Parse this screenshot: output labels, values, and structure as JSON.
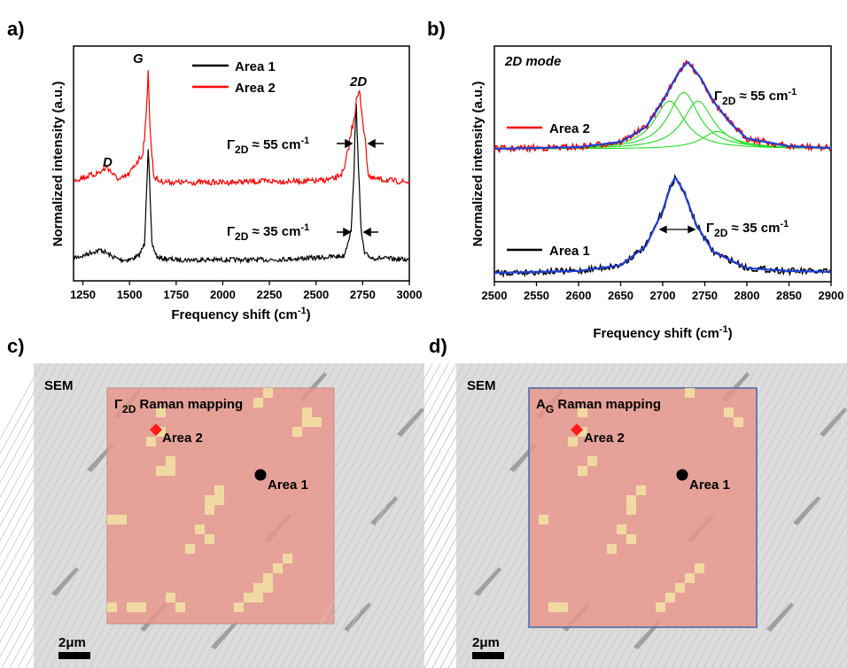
{
  "colors": {
    "area1": "#000000",
    "area2": "#ff0000",
    "fit": "#1f3fd6",
    "components": "#22dd22",
    "map_fill": "#e8958a",
    "map_highlight": "#f4e9a3",
    "sem_bg": "#dcdcdc",
    "map_border_d": "#4b6fa8"
  },
  "panels": {
    "a": {
      "letter": "a)",
      "xlabel": "Frequency shift (cm",
      "xlabel_sup": "-1",
      "xlabel_end": ")",
      "ylabel": "Normalized intensity (a.u.)",
      "xticks": [
        "1250",
        "1500",
        "1750",
        "2000",
        "2250",
        "2500",
        "2750",
        "3000"
      ],
      "peak_D": "D",
      "peak_G": "G",
      "peak_2D": "2D",
      "gamma_top": "Γ",
      "gamma_top_sub": "2D",
      "gamma_top_val": " ≈ 55 cm",
      "gamma_top_sup": "-1",
      "gamma_bot": "Γ",
      "gamma_bot_sub": "2D",
      "gamma_bot_val": " ≈ 35 cm",
      "gamma_bot_sup": "-1",
      "legend": [
        "Area 1",
        "Area 2"
      ]
    },
    "b": {
      "letter": "b)",
      "xlabel": "Frequency shift (cm",
      "xlabel_sup": "-1",
      "xlabel_end": ")",
      "ylabel": "Normalized intensity (a.u.)",
      "xticks": [
        "2500",
        "2550",
        "2600",
        "2650",
        "2700",
        "2750",
        "2800",
        "2850",
        "2900"
      ],
      "mode_label": "2D mode",
      "gamma_top": "Γ",
      "gamma_top_sub": "2D",
      "gamma_top_val": " ≈ 55 cm",
      "gamma_top_sup": "-1",
      "gamma_bot": "Γ",
      "gamma_bot_sub": "2D",
      "gamma_bot_val": " ≈ 35 cm",
      "gamma_bot_sup": "-1",
      "legend_top": "Area 2",
      "legend_bot": "Area 1"
    },
    "c": {
      "letter": "c)",
      "sem": "SEM",
      "map_title_symbol": "Γ",
      "map_title_sub": "2D",
      "map_title_rest": " Raman mapping",
      "area2": "Area 2",
      "area1": "Area 1",
      "scale": "2μm"
    },
    "d": {
      "letter": "d)",
      "sem": "SEM",
      "map_title_symbol": "A",
      "map_title_sub": "G",
      "map_title_rest": " Raman mapping",
      "area2": "Area 2",
      "area1": "Area 1",
      "scale": "2μm"
    }
  },
  "chart_data": [
    {
      "type": "line",
      "panel": "a",
      "xlabel": "Frequency shift (cm-1)",
      "ylabel": "Normalized intensity (a.u.)",
      "xlim": [
        1200,
        3000
      ],
      "series": [
        {
          "name": "Area 1",
          "x": [
            1200,
            1250,
            1300,
            1350,
            1400,
            1450,
            1500,
            1550,
            1580,
            1600,
            1620,
            1650,
            1750,
            2000,
            2250,
            2500,
            2650,
            2690,
            2705,
            2715,
            2725,
            2740,
            2760,
            2800,
            3000
          ],
          "y": [
            0.05,
            0.06,
            0.08,
            0.09,
            0.06,
            0.04,
            0.04,
            0.06,
            0.12,
            0.62,
            0.12,
            0.05,
            0.04,
            0.04,
            0.04,
            0.05,
            0.06,
            0.2,
            0.55,
            0.85,
            0.6,
            0.2,
            0.07,
            0.05,
            0.04
          ]
        },
        {
          "name": "Area 2",
          "x": [
            1200,
            1250,
            1300,
            1350,
            1380,
            1420,
            1450,
            1500,
            1540,
            1570,
            1590,
            1600,
            1610,
            1630,
            1660,
            1750,
            2000,
            2250,
            2500,
            2600,
            2650,
            2690,
            2720,
            2735,
            2760,
            2780,
            2800,
            3000
          ],
          "y": [
            0.05,
            0.07,
            0.09,
            0.12,
            0.16,
            0.08,
            0.05,
            0.1,
            0.2,
            0.26,
            0.55,
            1.0,
            0.45,
            0.08,
            0.04,
            0.03,
            0.03,
            0.04,
            0.04,
            0.06,
            0.12,
            0.45,
            0.72,
            0.75,
            0.42,
            0.1,
            0.06,
            0.03
          ]
        }
      ],
      "annotations": [
        "D",
        "G",
        "2D",
        "Γ2D ≈ 55 cm-1",
        "Γ2D ≈ 35 cm-1"
      ]
    },
    {
      "type": "line",
      "panel": "b",
      "xlabel": "Frequency shift (cm-1)",
      "ylabel": "Normalized intensity (a.u.)",
      "xlim": [
        2500,
        2900
      ],
      "series": [
        {
          "name": "Area 2",
          "x": [
            2500,
            2600,
            2650,
            2680,
            2700,
            2720,
            2730,
            2745,
            2760,
            2780,
            2800,
            2850,
            2900
          ],
          "y": [
            0.0,
            0.02,
            0.08,
            0.25,
            0.55,
            0.9,
            1.0,
            0.82,
            0.55,
            0.3,
            0.12,
            0.03,
            0.01
          ]
        },
        {
          "name": "Area 1",
          "x": [
            2500,
            2600,
            2650,
            2680,
            2700,
            2710,
            2715,
            2725,
            2740,
            2760,
            2800,
            2850,
            2900
          ],
          "y": [
            0.0,
            0.02,
            0.08,
            0.28,
            0.65,
            0.92,
            1.0,
            0.85,
            0.5,
            0.22,
            0.05,
            0.02,
            0.01
          ]
        }
      ],
      "lorentz_components_area2": [
        {
          "center": 2708,
          "height": 0.55
        },
        {
          "center": 2725,
          "height": 0.65
        },
        {
          "center": 2742,
          "height": 0.55
        },
        {
          "center": 2765,
          "height": 0.2
        }
      ],
      "annotations": [
        "2D mode",
        "Γ2D ≈ 55 cm-1",
        "Γ2D ≈ 35 cm-1"
      ]
    }
  ]
}
